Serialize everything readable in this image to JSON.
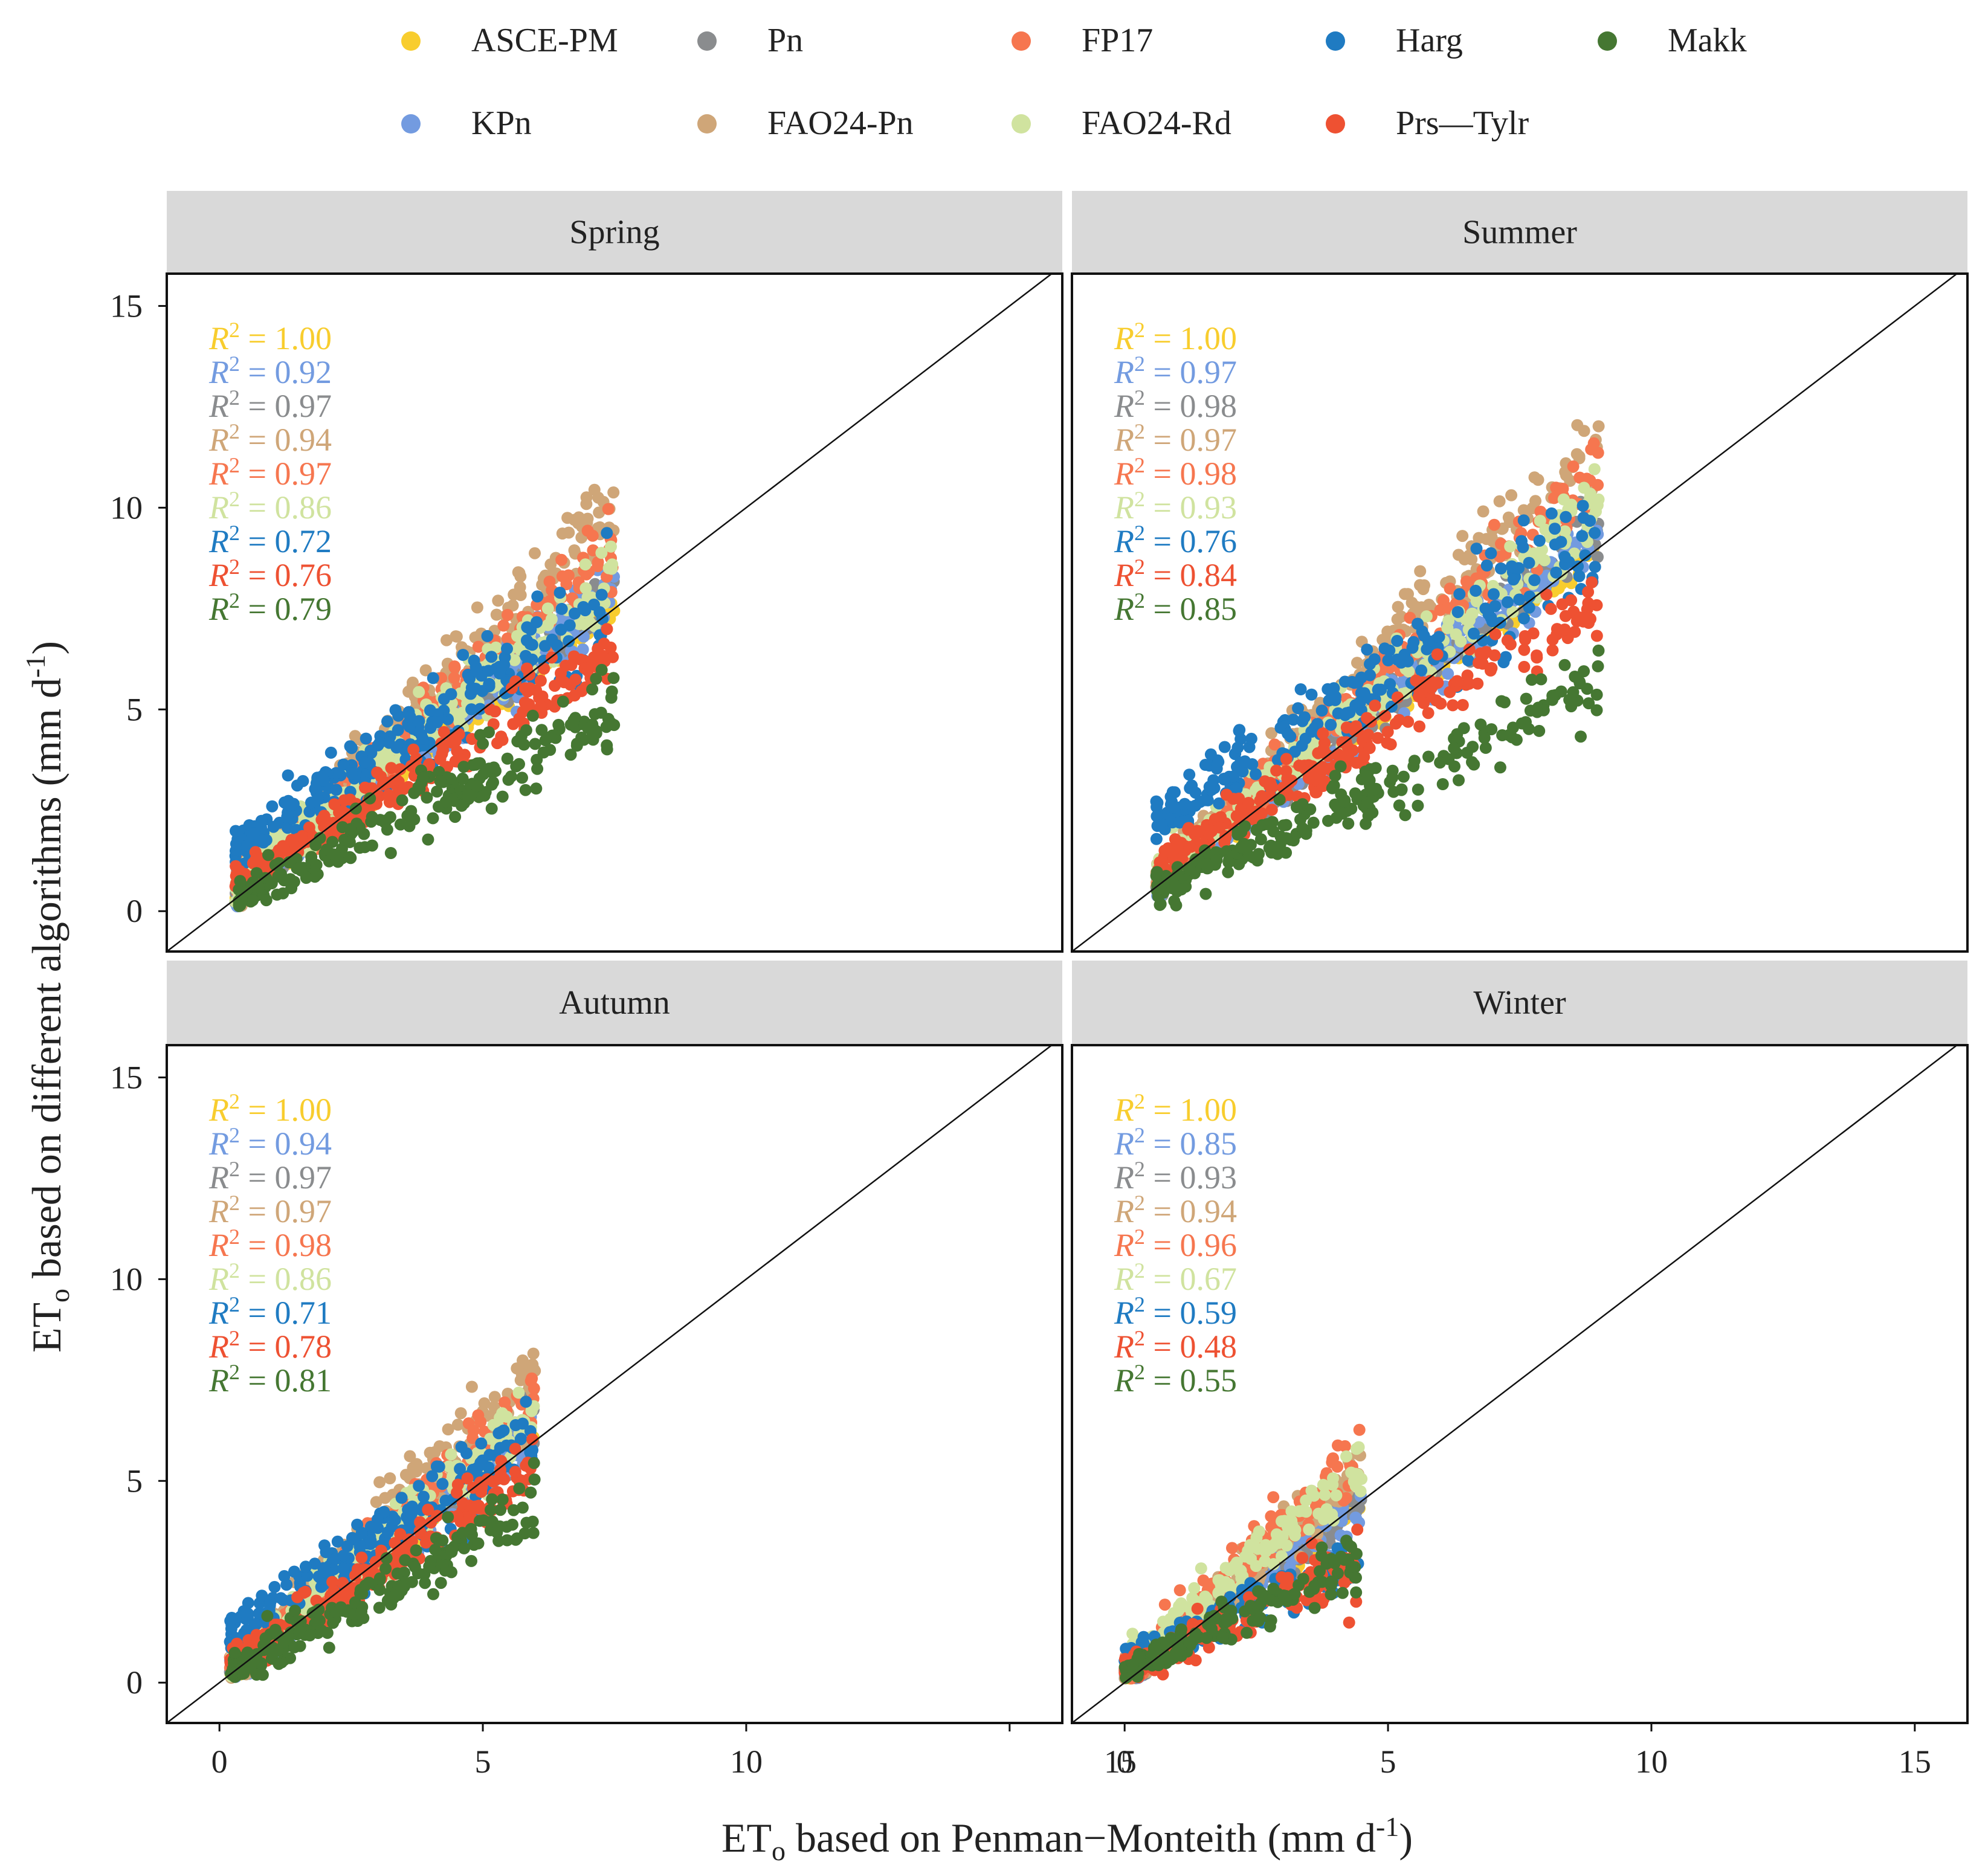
{
  "legend": [
    {
      "name": "ASCE-PM",
      "color": "#F8CD2E"
    },
    {
      "name": "Pn",
      "color": "#8A8C8E"
    },
    {
      "name": "FP17",
      "color": "#F6764F"
    },
    {
      "name": "Harg",
      "color": "#1F7BC2"
    },
    {
      "name": "Makk",
      "color": "#457732"
    },
    {
      "name": "KPn",
      "color": "#739BE0"
    },
    {
      "name": "FAO24-Pn",
      "color": "#CFA678"
    },
    {
      "name": "FAO24-Rd",
      "color": "#D0E39F"
    },
    {
      "name": "Prs—Tylr",
      "color": "#EE5132"
    }
  ],
  "axes": {
    "xlabel": "ET",
    "xlabel_sub": "o",
    "xlabel_rest": " based on Penman−Monteith (mm d",
    "xlabel_sup": "-1",
    "xlabel_end": ")",
    "ylabel": "ET",
    "ylabel_sub": "o",
    "ylabel_rest": " based on different algorithms (mm d",
    "ylabel_sup": "-1",
    "ylabel_end": ")",
    "y_ticks": [
      "0",
      "5",
      "10",
      "15"
    ],
    "x_ticks_left": [
      "0",
      "5",
      "10"
    ],
    "x_ticks_right": [
      "15",
      "0",
      "5",
      "10",
      "15"
    ]
  },
  "r2_prefix": "R",
  "r2_sup": "2",
  "chart_data": [
    {
      "type": "scatter",
      "title": "Spring",
      "xlim": [
        -1,
        16
      ],
      "ylim": [
        -1,
        15.8
      ],
      "series": [
        "ASCE-PM",
        "KPn",
        "Pn",
        "FAO24-Pn",
        "FP17",
        "FAO24-Rd",
        "Harg",
        "Prs—Tylr",
        "Makk"
      ],
      "r2": [
        "1.00",
        "0.92",
        "0.97",
        "0.94",
        "0.97",
        "0.86",
        "0.72",
        "0.76",
        "0.79"
      ]
    },
    {
      "type": "scatter",
      "title": "Summer",
      "xlim": [
        -1,
        16
      ],
      "ylim": [
        -1,
        15.8
      ],
      "series": [
        "ASCE-PM",
        "KPn",
        "Pn",
        "FAO24-Pn",
        "FP17",
        "FAO24-Rd",
        "Harg",
        "Prs—Tylr",
        "Makk"
      ],
      "r2": [
        "1.00",
        "0.97",
        "0.98",
        "0.97",
        "0.98",
        "0.93",
        "0.76",
        "0.84",
        "0.85"
      ]
    },
    {
      "type": "scatter",
      "title": "Autumn",
      "xlim": [
        -1,
        16
      ],
      "ylim": [
        -1,
        15.8
      ],
      "series": [
        "ASCE-PM",
        "KPn",
        "Pn",
        "FAO24-Pn",
        "FP17",
        "FAO24-Rd",
        "Harg",
        "Prs—Tylr",
        "Makk"
      ],
      "r2": [
        "1.00",
        "0.94",
        "0.97",
        "0.97",
        "0.98",
        "0.86",
        "0.71",
        "0.78",
        "0.81"
      ]
    },
    {
      "type": "scatter",
      "title": "Winter",
      "xlim": [
        -1,
        16
      ],
      "ylim": [
        -1,
        15.8
      ],
      "series": [
        "ASCE-PM",
        "KPn",
        "Pn",
        "FAO24-Pn",
        "FP17",
        "FAO24-Rd",
        "Harg",
        "Prs—Tylr",
        "Makk"
      ],
      "r2": [
        "1.00",
        "0.85",
        "0.93",
        "0.94",
        "0.96",
        "0.67",
        "0.59",
        "0.48",
        "0.55"
      ]
    }
  ]
}
